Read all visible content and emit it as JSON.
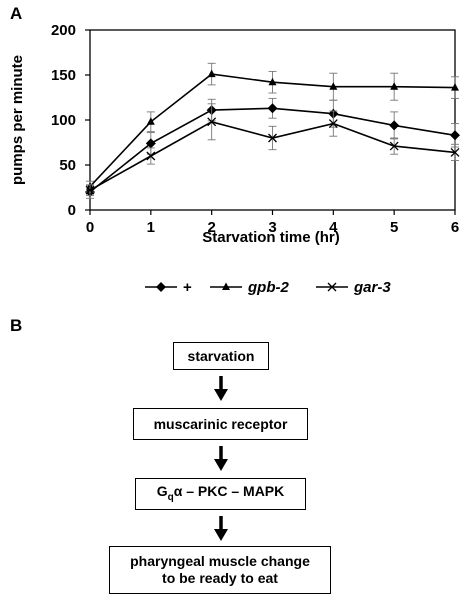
{
  "panels": {
    "a_label": "A",
    "b_label": "B"
  },
  "chart_data": {
    "type": "line",
    "xlabel": "Starvation time (hr)",
    "ylabel": "pumps per minute",
    "x": [
      0,
      1,
      2,
      3,
      4,
      5,
      6
    ],
    "xlim": [
      0,
      6
    ],
    "ylim": [
      0,
      200
    ],
    "x_ticks": [
      "0",
      "1",
      "2",
      "3",
      "4",
      "5",
      "6"
    ],
    "y_ticks": [
      "0",
      "50",
      "100",
      "150",
      "200"
    ],
    "grid": false,
    "legend_position": "bottom",
    "series": [
      {
        "name": "+",
        "marker": "diamond",
        "italic": false,
        "values": [
          20,
          74,
          111,
          113,
          107,
          94,
          83
        ],
        "errors": [
          7,
          12,
          12,
          11,
          15,
          15,
          13
        ]
      },
      {
        "name": "gpb-2",
        "marker": "triangle",
        "italic": true,
        "values": [
          26,
          98,
          151,
          142,
          137,
          137,
          136
        ],
        "errors": [
          6,
          11,
          12,
          12,
          15,
          15,
          12
        ]
      },
      {
        "name": "gar-3",
        "marker": "x",
        "italic": true,
        "values": [
          22,
          60,
          98,
          80,
          96,
          71,
          64
        ],
        "errors": [
          6,
          9,
          20,
          13,
          14,
          9,
          9
        ]
      }
    ]
  },
  "flowchart": {
    "steps": [
      {
        "text": "starvation"
      },
      {
        "text": "muscarinic receptor"
      },
      {
        "text_main": "G",
        "text_sub": "q",
        "text_rest": "α – PKC – MAPK"
      },
      {
        "line1": "pharyngeal muscle change",
        "line2": "to be ready to eat"
      }
    ]
  }
}
